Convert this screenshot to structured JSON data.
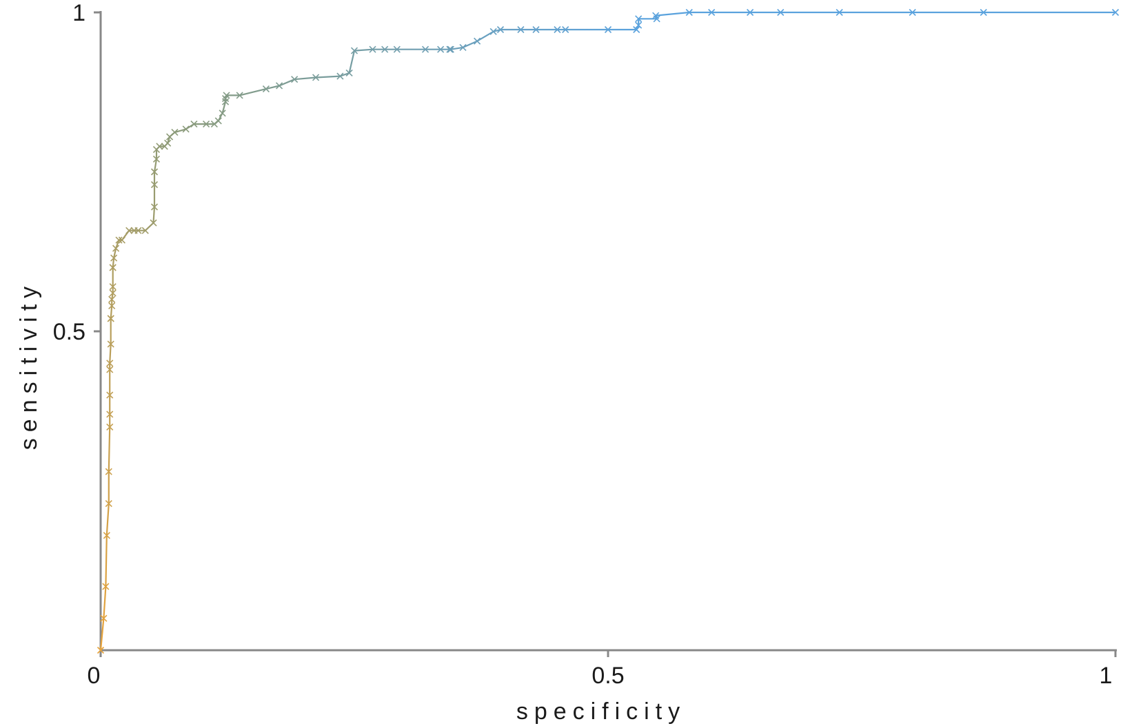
{
  "chart_data": {
    "type": "line",
    "title": "",
    "xlabel": "specificity",
    "ylabel": "sensitivity",
    "xlim": [
      0,
      1
    ],
    "ylim": [
      0,
      1
    ],
    "x_ticks": [
      {
        "value": 0,
        "label": "0"
      },
      {
        "value": 0.5,
        "label": "0.5"
      },
      {
        "value": 1,
        "label": "1"
      }
    ],
    "y_ticks": [
      {
        "value": 0.5,
        "label": "0.5"
      },
      {
        "value": 1,
        "label": "1"
      }
    ],
    "grid": false,
    "legend": "none",
    "marker": "x",
    "colors": {
      "start": "#e8a33a",
      "middle": "#8b9a78",
      "end": "#5aa2dd",
      "axis": "#888888"
    },
    "series": [
      {
        "x": [
          0,
          0.003,
          0.005,
          0.006,
          0.008,
          0.008,
          0.009,
          0.009,
          0.009,
          0.009,
          0.009,
          0.01,
          0.01,
          0.01,
          0.011,
          0.011,
          0.012,
          0.012,
          0.012,
          0.012,
          0.013,
          0.015,
          0.018,
          0.021,
          0.028,
          0.033,
          0.037,
          0.044,
          0.052,
          0.053,
          0.053,
          0.053,
          0.055,
          0.055,
          0.058,
          0.063,
          0.066,
          0.068,
          0.073,
          0.084,
          0.092,
          0.104,
          0.112,
          0.116,
          0.12,
          0.123,
          0.123,
          0.124,
          0.137,
          0.163,
          0.176,
          0.191,
          0.212,
          0.236,
          0.245,
          0.25,
          0.268,
          0.28,
          0.292,
          0.32,
          0.335,
          0.344,
          0.345,
          0.357,
          0.371,
          0.387,
          0.394,
          0.414,
          0.429,
          0.45,
          0.458,
          0.5,
          0.528,
          0.53,
          0.53,
          0.548,
          0.547,
          0.58,
          0.602,
          0.64,
          0.67,
          0.728,
          0.8,
          0.87,
          1
        ],
        "y": [
          0,
          0.05,
          0.1,
          0.18,
          0.23,
          0.28,
          0.35,
          0.37,
          0.4,
          0.44,
          0.45,
          0.48,
          0.52,
          0.52,
          0.54,
          0.55,
          0.56,
          0.57,
          0.6,
          0.6,
          0.615,
          0.63,
          0.643,
          0.643,
          0.658,
          0.658,
          0.658,
          0.658,
          0.67,
          0.695,
          0.73,
          0.75,
          0.77,
          0.785,
          0.79,
          0.79,
          0.795,
          0.805,
          0.812,
          0.817,
          0.825,
          0.825,
          0.825,
          0.83,
          0.842,
          0.86,
          0.865,
          0.87,
          0.87,
          0.88,
          0.885,
          0.895,
          0.898,
          0.9,
          0.905,
          0.94,
          0.942,
          0.942,
          0.942,
          0.942,
          0.942,
          0.942,
          0.942,
          0.945,
          0.955,
          0.97,
          0.973,
          0.973,
          0.973,
          0.973,
          0.973,
          0.973,
          0.973,
          0.98,
          0.99,
          0.99,
          0.995,
          1.0,
          1.0,
          1.0,
          1.0,
          1.0,
          1.0,
          1.0,
          1.0
        ]
      }
    ]
  }
}
